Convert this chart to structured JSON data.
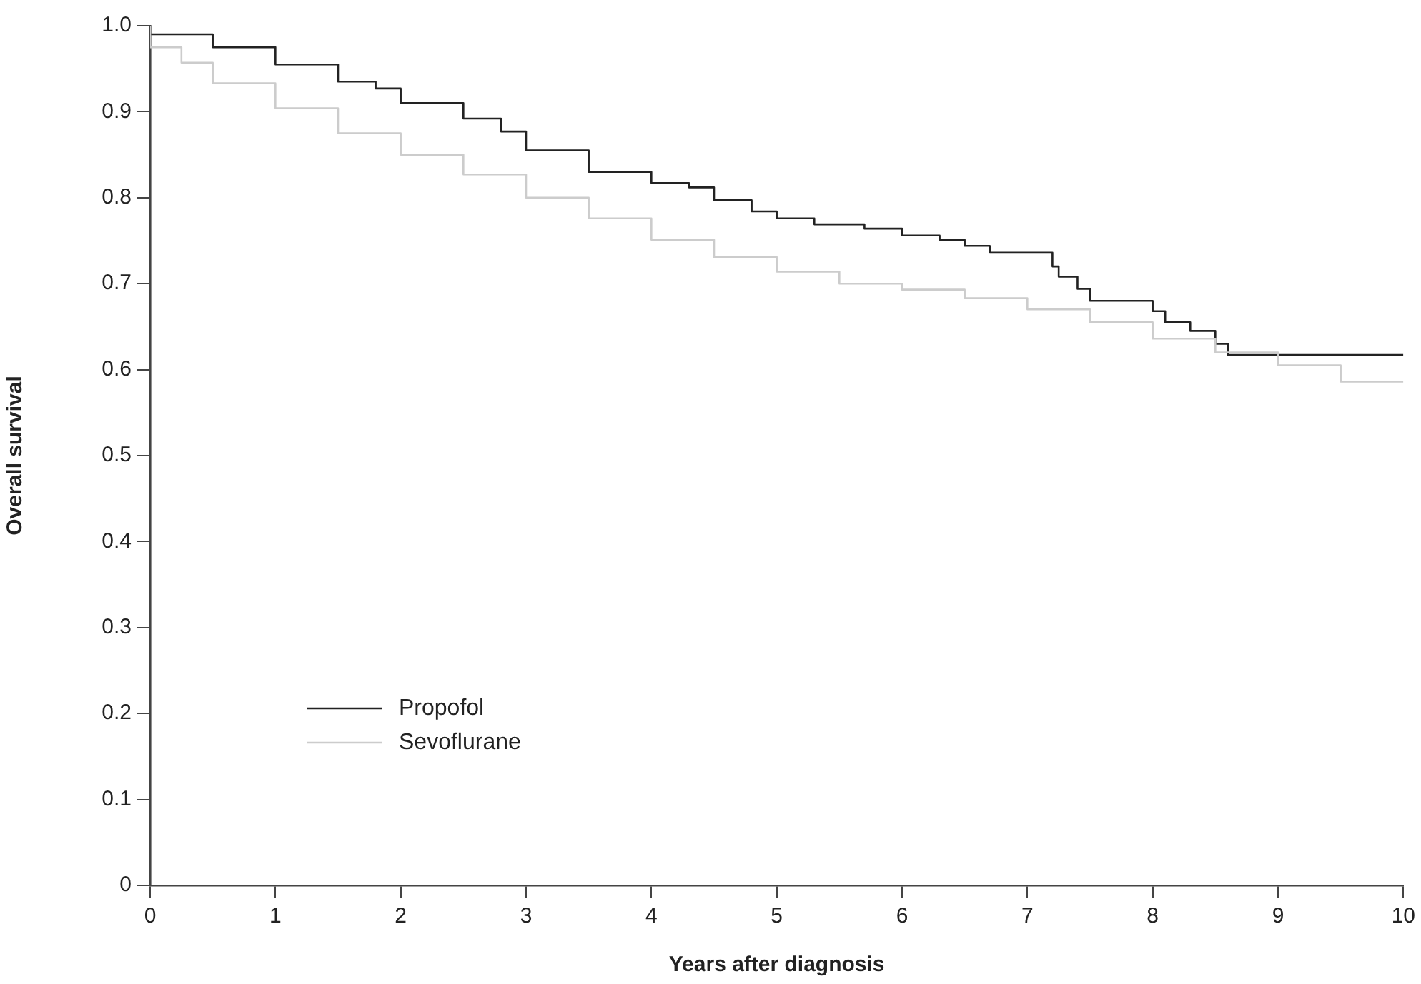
{
  "chart_data": {
    "type": "step",
    "xlabel": "Years after diagnosis",
    "ylabel": "Overall survival",
    "xlim": [
      0,
      10
    ],
    "xticks": [
      0,
      1,
      2,
      3,
      4,
      5,
      6,
      7,
      8,
      9,
      10
    ],
    "ylim": [
      0,
      1
    ],
    "yticks": [
      0,
      0.1,
      0.2,
      0.3,
      0.4,
      0.5,
      0.6,
      0.7,
      0.8,
      0.9,
      {
        "value": 1,
        "label": "1.0"
      }
    ],
    "grid": false,
    "legend": "bottom left",
    "marker": "none",
    "line_style": "solid",
    "series": [
      {
        "name": "Propofol",
        "color": "#222222",
        "x": [
          0,
          0.5,
          1,
          1.5,
          1.8,
          2,
          2.5,
          2.8,
          3,
          3.5,
          4,
          4.3,
          4.5,
          4.8,
          5,
          5.3,
          5.7,
          6,
          6.3,
          6.5,
          6.7,
          6.8,
          7.2,
          7.25,
          7.4,
          7.5,
          7.7,
          8,
          8.1,
          8.3,
          8.5,
          8.6,
          8.65,
          10
        ],
        "values": [
          1,
          0.99,
          0.975,
          0.955,
          0.935,
          0.927,
          0.91,
          0.892,
          0.877,
          0.855,
          0.83,
          0.817,
          0.812,
          0.797,
          0.784,
          0.776,
          0.769,
          0.764,
          0.756,
          0.751,
          0.744,
          0.736,
          0.736,
          0.72,
          0.708,
          0.694,
          0.68,
          0.68,
          0.668,
          0.655,
          0.645,
          0.63,
          0.617,
          0.617
        ]
      },
      {
        "name": "Sevoflurane",
        "color": "#cccccc",
        "x": [
          0,
          0.25,
          0.5,
          1,
          1.5,
          2,
          2.5,
          3,
          3.5,
          4,
          4.5,
          5,
          5.5,
          6,
          6.5,
          7,
          7.5,
          8,
          8.5,
          9,
          9.5,
          10
        ],
        "values": [
          1,
          0.975,
          0.957,
          0.933,
          0.904,
          0.875,
          0.85,
          0.827,
          0.8,
          0.776,
          0.751,
          0.731,
          0.714,
          0.7,
          0.693,
          0.683,
          0.67,
          0.655,
          0.636,
          0.62,
          0.605,
          0.586
        ]
      }
    ]
  }
}
